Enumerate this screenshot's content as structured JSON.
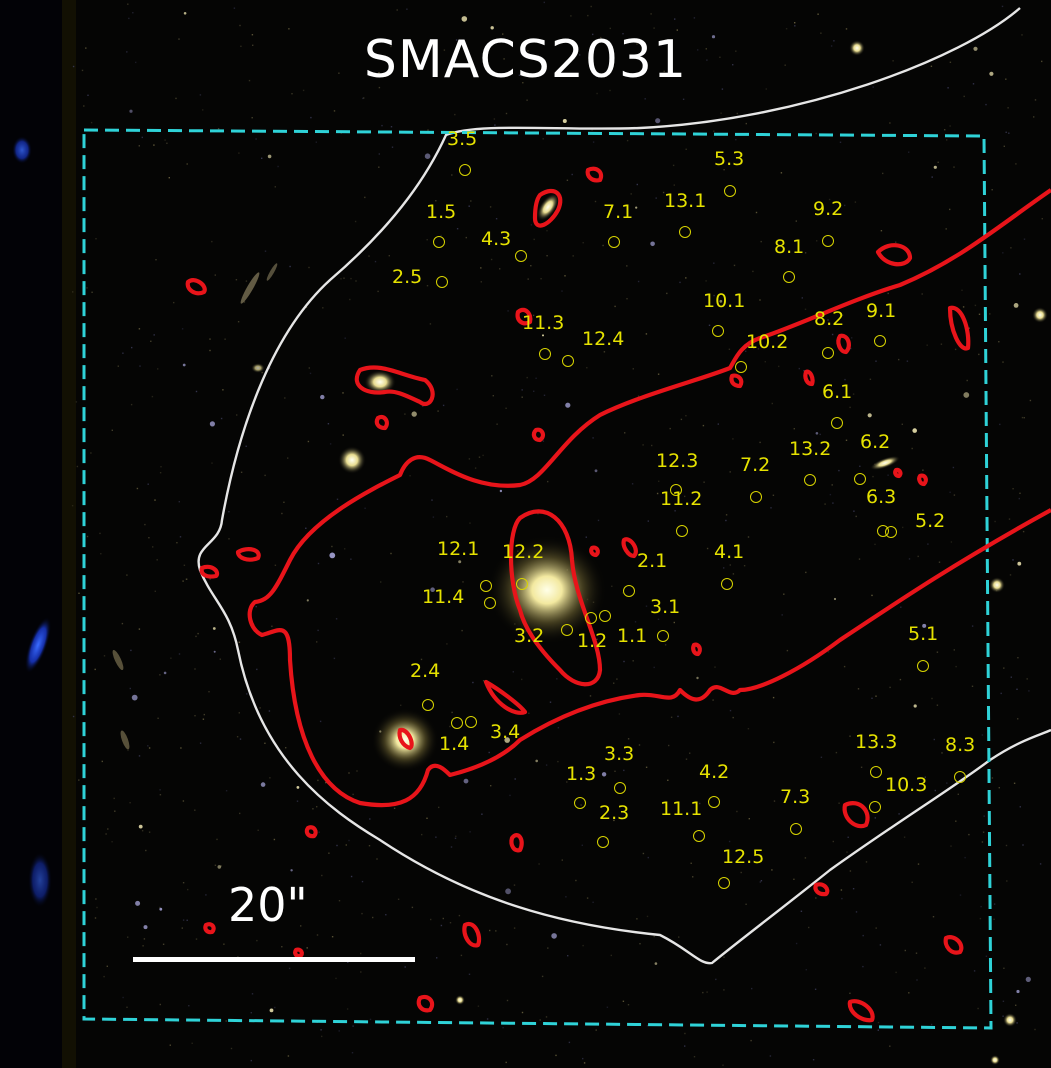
{
  "figure": {
    "title": "SMACS2031",
    "scale_bar_label": "20\"",
    "colors": {
      "critical_curve": "#e8141a",
      "caustic_outline": "#e6e6e6",
      "field_box": "#2fd3d8",
      "image_labels": "#e6e200",
      "background": "#050504"
    }
  },
  "multiple_images": [
    {
      "id": "3.5"
    },
    {
      "id": "5.3"
    },
    {
      "id": "1.5"
    },
    {
      "id": "4.3"
    },
    {
      "id": "7.1"
    },
    {
      "id": "13.1"
    },
    {
      "id": "9.2"
    },
    {
      "id": "8.1"
    },
    {
      "id": "2.5"
    },
    {
      "id": "10.1"
    },
    {
      "id": "11.3"
    },
    {
      "id": "12.4"
    },
    {
      "id": "8.2"
    },
    {
      "id": "9.1"
    },
    {
      "id": "10.2"
    },
    {
      "id": "6.1"
    },
    {
      "id": "13.2"
    },
    {
      "id": "6.2"
    },
    {
      "id": "12.3"
    },
    {
      "id": "7.2"
    },
    {
      "id": "11.2"
    },
    {
      "id": "6.3"
    },
    {
      "id": "5.2"
    },
    {
      "id": "12.1"
    },
    {
      "id": "12.2"
    },
    {
      "id": "2.1"
    },
    {
      "id": "4.1"
    },
    {
      "id": "11.4"
    },
    {
      "id": "3.1"
    },
    {
      "id": "3.2"
    },
    {
      "id": "1.2"
    },
    {
      "id": "1.1"
    },
    {
      "id": "5.1"
    },
    {
      "id": "2.4"
    },
    {
      "id": "1.4"
    },
    {
      "id": "3.4"
    },
    {
      "id": "13.3"
    },
    {
      "id": "8.3"
    },
    {
      "id": "1.3"
    },
    {
      "id": "3.3"
    },
    {
      "id": "4.2"
    },
    {
      "id": "10.3"
    },
    {
      "id": "7.3"
    },
    {
      "id": "2.3"
    },
    {
      "id": "11.1"
    },
    {
      "id": "12.5"
    }
  ]
}
